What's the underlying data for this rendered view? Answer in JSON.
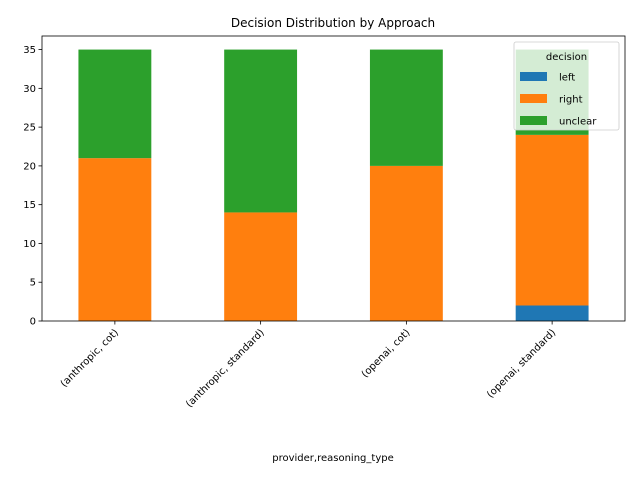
{
  "chart_data": {
    "type": "bar",
    "stacked": true,
    "title": "Decision Distribution by Approach",
    "xlabel": "provider,reasoning_type",
    "ylabel": "",
    "categories": [
      "(anthropic, cot)",
      "(anthropic, standard)",
      "(openai, cot)",
      "(openai, standard)"
    ],
    "series": [
      {
        "name": "left",
        "color": "#1f77b4",
        "values": [
          0,
          0,
          0,
          2
        ]
      },
      {
        "name": "right",
        "color": "#ff7f0e",
        "values": [
          21,
          14,
          20,
          22
        ]
      },
      {
        "name": "unclear",
        "color": "#2ca02c",
        "values": [
          14,
          21,
          15,
          11
        ]
      }
    ],
    "ylim": [
      0,
      36.75
    ],
    "yticks": [
      0,
      5,
      10,
      15,
      20,
      25,
      30,
      35
    ],
    "grid": false,
    "legend": {
      "title": "decision",
      "position": "top-right"
    }
  }
}
